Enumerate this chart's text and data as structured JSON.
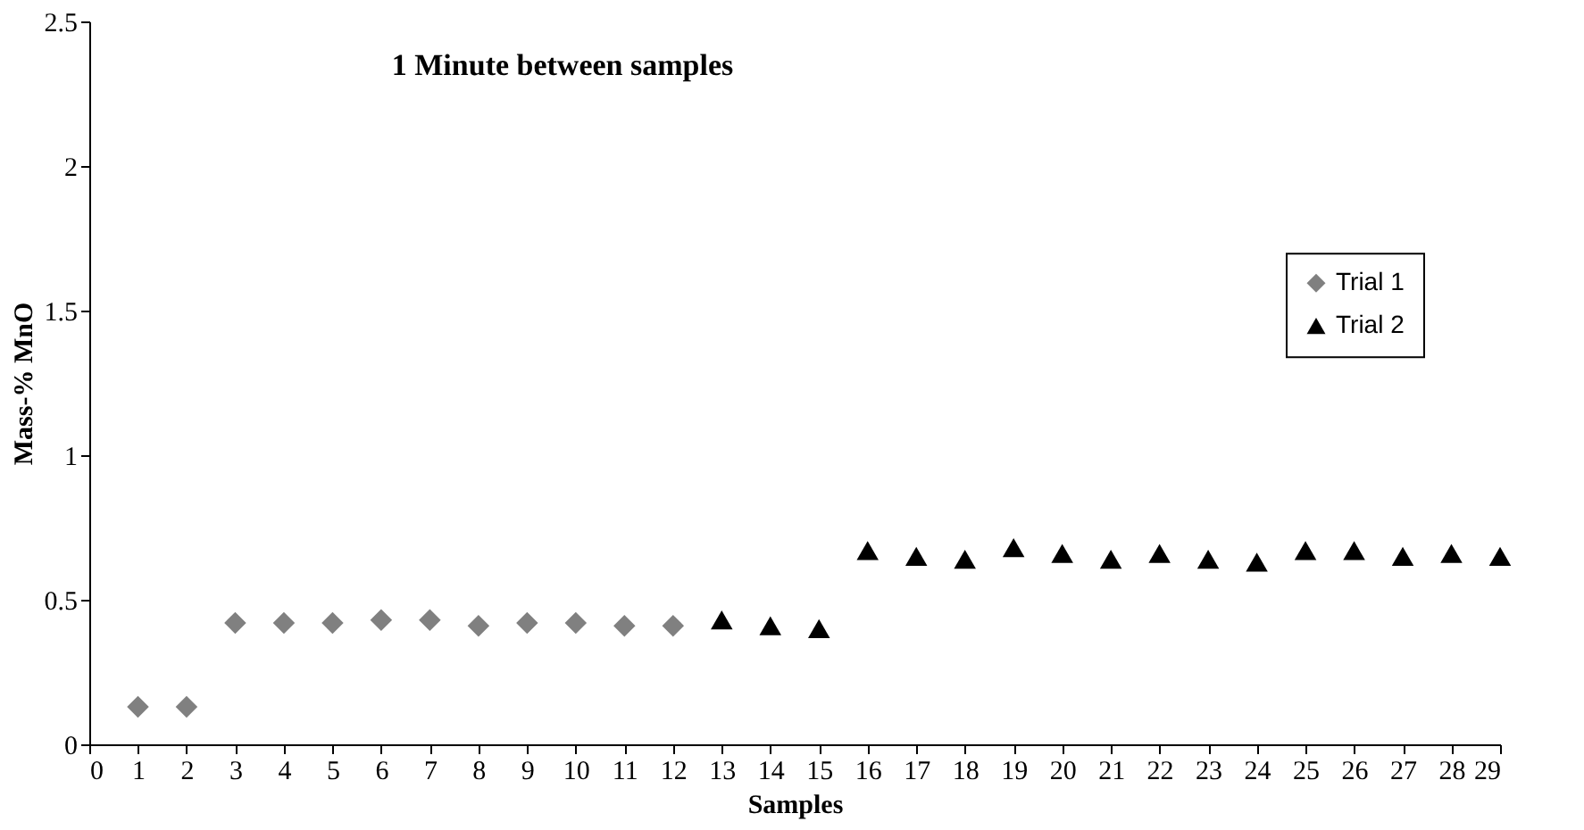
{
  "chart_data": {
    "type": "scatter",
    "title": "1 Minute between samples",
    "xlabel": "Samples",
    "ylabel": "Mass-% MnO",
    "series": [
      {
        "name": "Trial 1",
        "color": "#808080",
        "marker": "diamond",
        "x": [
          1,
          2,
          3,
          4,
          5,
          6,
          7,
          8,
          9,
          10,
          11,
          12
        ],
        "values": [
          0.13,
          0.13,
          0.42,
          0.42,
          0.42,
          0.43,
          0.43,
          0.41,
          0.42,
          0.42,
          0.41,
          0.41
        ]
      },
      {
        "name": "Trial 2",
        "color": "#000000",
        "marker": "triangle",
        "x": [
          13,
          14,
          15,
          16,
          17,
          18,
          19,
          20,
          21,
          22,
          23,
          24,
          25,
          26,
          27,
          28,
          29
        ],
        "values": [
          0.43,
          0.41,
          0.4,
          0.67,
          0.65,
          0.64,
          0.68,
          0.66,
          0.64,
          0.66,
          0.64,
          0.63,
          0.67,
          0.67,
          0.65,
          0.66,
          0.65
        ]
      }
    ],
    "xlim": [
      0,
      29
    ],
    "xticks": [
      0,
      1,
      2,
      3,
      4,
      5,
      6,
      7,
      8,
      9,
      10,
      11,
      12,
      13,
      14,
      15,
      16,
      17,
      18,
      19,
      20,
      21,
      22,
      23,
      24,
      25,
      26,
      27,
      28,
      29
    ],
    "ylim": [
      0,
      2.5
    ],
    "yticks": [
      0,
      0.5,
      1,
      1.5,
      2,
      2.5
    ],
    "grid": false,
    "legend": "right"
  }
}
